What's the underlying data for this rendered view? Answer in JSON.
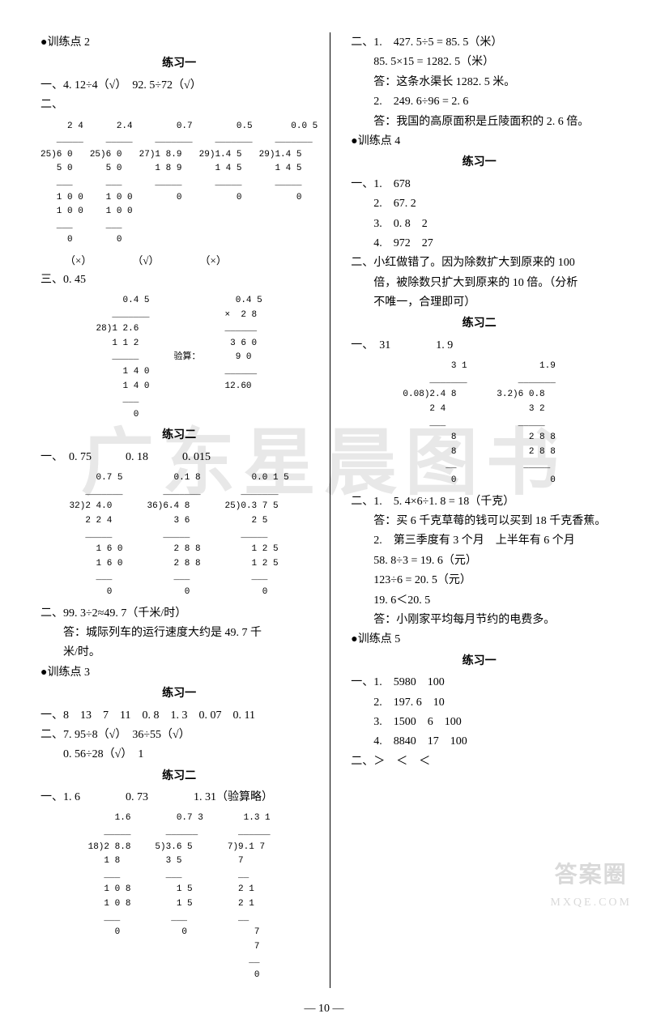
{
  "watermark": "广东星晨图书",
  "corner": {
    "line1": "答案圈",
    "line2": "MXQE.COM"
  },
  "pageno": "— 10 —",
  "left": {
    "tp2": "●训练点 2",
    "ex1": "练习一",
    "l1": "一、4. 12÷4（√）　92. 5÷72（√）",
    "l2": "二、",
    "ldrow1": {
      "a": "     2 4\n   _____\n25)6 0\n   5 0\n   ___\n   1 0 0\n   1 0 0\n   ___\n     0",
      "b": "     2.4\n   _____\n25)6 0\n   5 0\n   ___\n   1 0 0\n   1 0 0\n   ___\n     0",
      "c": "       0.7\n   _______\n27)1 8.9\n   1 8 9\n   _____\n       0",
      "d": "       0.5\n   _______\n29)1.4 5\n   1 4 5\n   _____\n       0",
      "e": "      0.0 5\n   _______\n29)1.4 5\n   1 4 5\n   _____\n       0"
    },
    "marks": {
      "a": "（×）",
      "b": "（√）",
      "c": "（×）"
    },
    "l3": "三、0. 45",
    "ldrow2": {
      "a": "     0.4 5\n   _______\n28)1 2.6\n   1 1 2\n   _____\n     1 4 0\n     1 4 0\n     ___\n       0",
      "check": "验算：",
      "b": "  0.4 5\n×  2 8\n______\n 3 6 0\n  9 0\n______\n12.60"
    },
    "ex2": "练习二",
    "l4": "一、　0. 75　　　0. 18　　　0. 015",
    "ldrow3": {
      "a": "     0.7 5\n   _______\n32)2 4.0\n   2 2 4\n   _____\n     1 6 0\n     1 6 0\n     ___\n       0",
      "b": "     0.1 8\n   _______\n36)6.4 8\n     3 6\n   _____\n     2 8 8\n     2 8 8\n     ___\n       0",
      "c": "     0.0 1 5\n   _______\n25)0.3 7 5\n     2 5\n   _____\n     1 2 5\n     1 2 5\n     ___\n       0"
    },
    "l5": "二、99. 3÷2≈49. 7（千米/时）",
    "l5a": "答：城际列车的运行速度大约是 49. 7 千",
    "l5b": "米/时。",
    "tp3": "●训练点 3",
    "ex3": "练习一",
    "l6": "一、8　13　7　11　0. 8　1. 3　0. 07　0. 11",
    "l7": "二、7. 95÷8（√）　36÷55（√）",
    "l7a": "0. 56÷28（√）　1",
    "ex4": "练习二",
    "l8": "一、1. 6　　　　0. 73　　　　1. 31（验算略）",
    "ldrow4": {
      "a": "     1.6\n   _____\n18)2 8.8\n   1 8\n   ___\n   1 0 8\n   1 0 8\n   ___\n     0",
      "b": "    0.7 3\n  ______\n5)3.6 5\n  3 5\n  ___\n    1 5\n    1 5\n   ___\n     0",
      "c": "   1.3 1\n  ______\n7)9.1 7\n  7\n  __\n  2 1\n  2 1\n  __\n     7\n     7\n    __\n     0"
    }
  },
  "right": {
    "r1": "二、1.　427. 5÷5 = 85. 5（米）",
    "r2": "85. 5×15 = 1282. 5（米）",
    "r3": "答：这条水渠长 1282. 5 米。",
    "r4": "2.　249. 6÷96 = 2. 6",
    "r5": "答：我国的高原面积是丘陵面积的 2. 6 倍。",
    "tp4": "●训练点 4",
    "ex1": "练习一",
    "r6": "一、1.　678",
    "r7": "2.　67. 2",
    "r8": "3.　0. 8　2",
    "r9": "4.　972　27",
    "r10": "二、小红做错了。因为除数扩大到原来的 100",
    "r11": "倍，被除数只扩大到原来的 10 倍。（分析",
    "r12": "不唯一，合理即可）",
    "ex2": "练习二",
    "r13": "一、　31　　　　1. 9",
    "ldrow5": {
      "a": "         3 1\n     _______\n0.08)2.4 8\n     2 4\n     ___\n         8\n         8\n        __\n         0",
      "b": "         1.9\n     _______\n 3.2)6 0.8\n       3 2\n     _____\n       2 8 8\n       2 8 8\n      _____\n           0"
    },
    "r14": "二、1.　5. 4×6÷1. 8 = 18（千克）",
    "r15": "答：买 6 千克草莓的钱可以买到 18 千克香蕉。",
    "r16": "2.　第三季度有 3 个月　上半年有 6 个月",
    "r17": "58. 8÷3 = 19. 6（元）",
    "r18": "123÷6 = 20. 5（元）",
    "r19": "19. 6＜20. 5",
    "r20": "答：小刚家平均每月节约的电费多。",
    "tp5": "●训练点 5",
    "ex3": "练习一",
    "r21": "一、1.　5980　100",
    "r22": "2.　197. 6　10",
    "r23": "3.　1500　6　100",
    "r24": "4.　8840　17　100",
    "r25": "二、＞　＜　＜"
  }
}
